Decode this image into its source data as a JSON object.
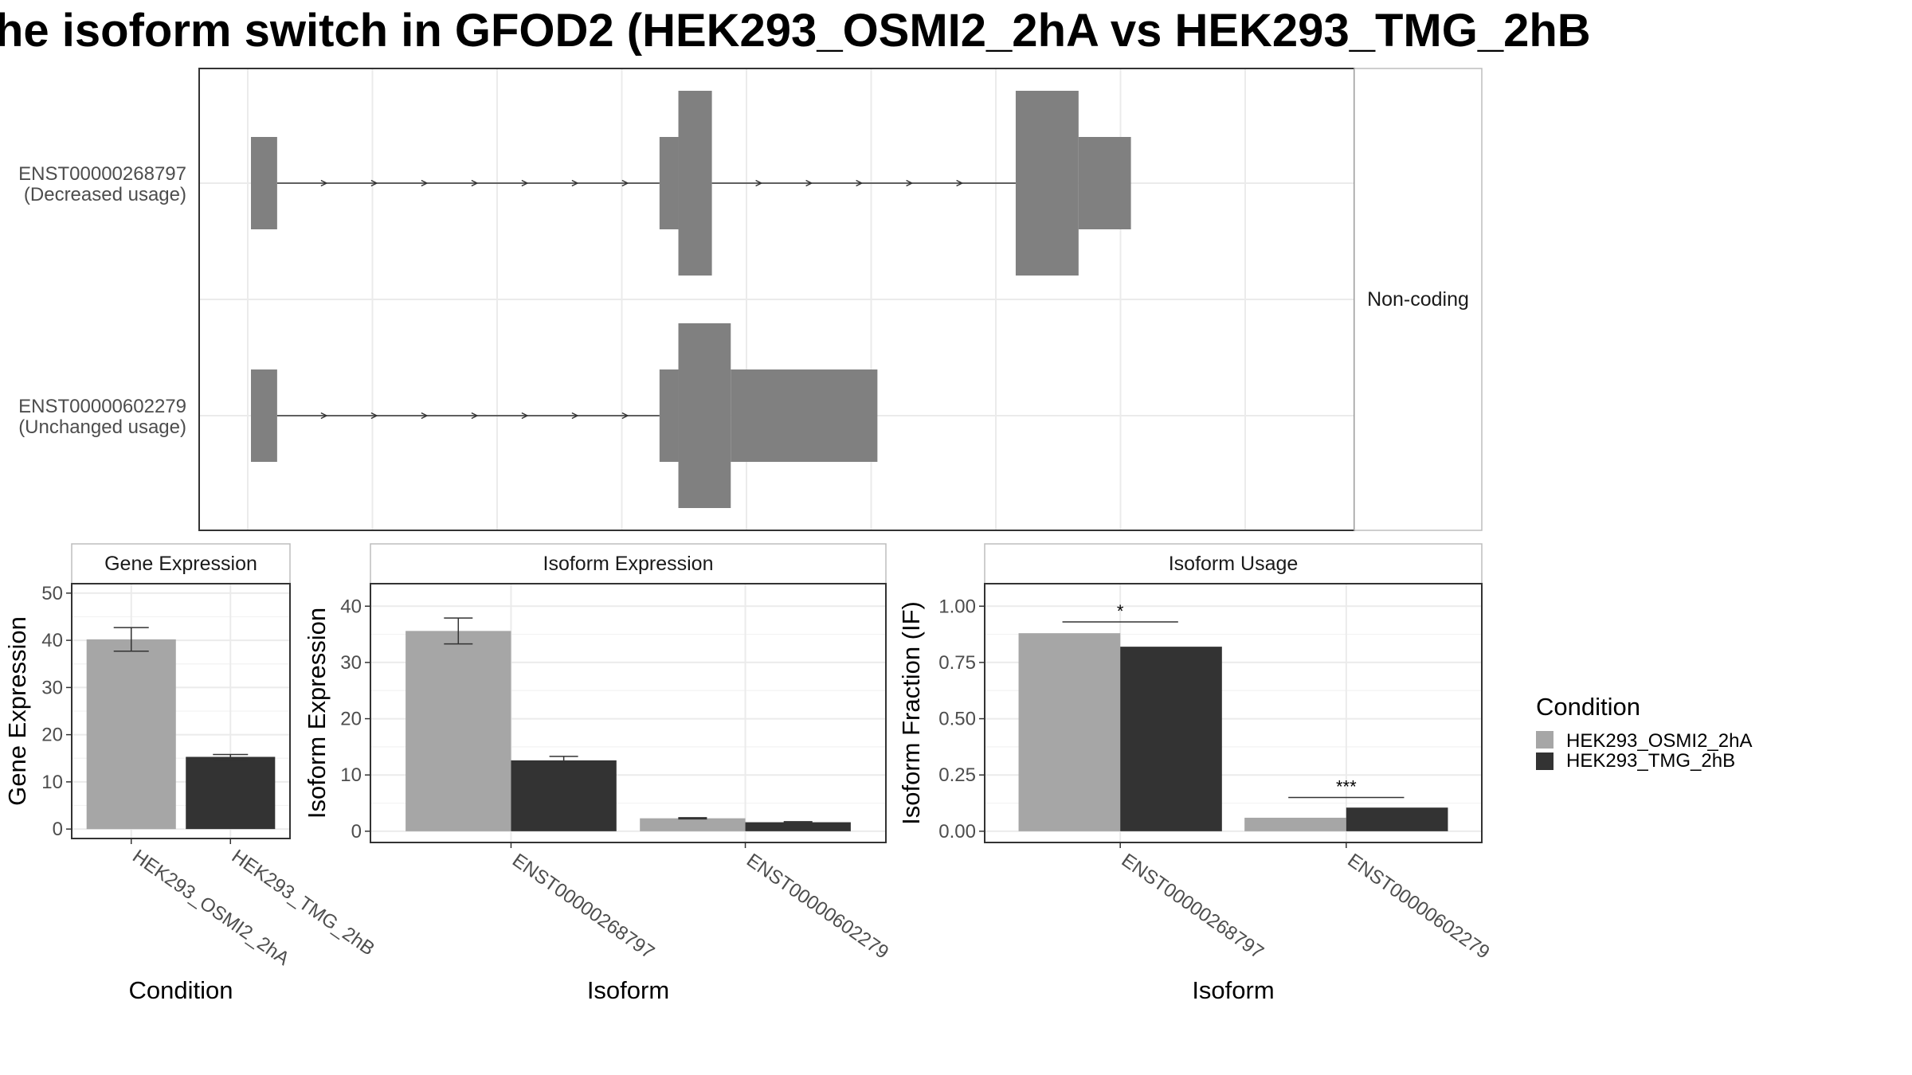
{
  "title": "he isoform switch in GFOD2 (HEK293_OSMI2_2hA vs HEK293_TMG_2hB",
  "colors": {
    "cond_a": "#a6a6a6",
    "cond_b": "#333333",
    "exon": "#808080",
    "grid": "#ebebeb"
  },
  "legend": {
    "title": "Condition",
    "entries": [
      {
        "label": "HEK293_OSMI2_2hA",
        "color": "#a6a6a6"
      },
      {
        "label": "HEK293_TMG_2hB",
        "color": "#333333"
      }
    ],
    "placement": "right"
  },
  "chart_data": [
    {
      "type": "gene-structure",
      "strip_label": "Non-coding",
      "transcripts": [
        {
          "id": "ENST00000268797",
          "usage": "(Decreased usage)",
          "strand": "+",
          "exons": [
            {
              "start": 0.0,
              "end": 0.025,
              "size": "medium"
            },
            {
              "start": 0.39,
              "end": 0.408,
              "size": "medium"
            },
            {
              "start": 0.408,
              "end": 0.44,
              "size": "large"
            },
            {
              "start": 0.73,
              "end": 0.79,
              "size": "large"
            },
            {
              "start": 0.79,
              "end": 0.84,
              "size": "medium"
            }
          ]
        },
        {
          "id": "ENST00000602279",
          "usage": "(Unchanged usage)",
          "strand": "+",
          "exons": [
            {
              "start": 0.0,
              "end": 0.025,
              "size": "medium"
            },
            {
              "start": 0.39,
              "end": 0.408,
              "size": "medium"
            },
            {
              "start": 0.408,
              "end": 0.458,
              "size": "large"
            },
            {
              "start": 0.458,
              "end": 0.598,
              "size": "medium"
            }
          ]
        }
      ]
    },
    {
      "type": "bar",
      "strip_label": "Gene Expression",
      "xlabel": "Condition",
      "ylabel": "Gene Expression",
      "ylim": [
        -2,
        52
      ],
      "yticks": [
        0,
        10,
        20,
        30,
        40,
        50
      ],
      "categories": [
        "HEK293_OSMI2_2hA",
        "HEK293_TMG_2hB"
      ],
      "values": [
        40.2,
        15.3
      ],
      "errors": [
        2.5,
        0.5
      ],
      "grid": true
    },
    {
      "type": "bar",
      "strip_label": "Isoform Expression",
      "xlabel": "Isoform",
      "ylabel": "Isoform Expression",
      "ylim": [
        -2,
        44
      ],
      "yticks": [
        0,
        10,
        20,
        30,
        40
      ],
      "categories": [
        "ENST00000268797",
        "ENST00000602279"
      ],
      "series": [
        {
          "name": "HEK293_OSMI2_2hA",
          "values": [
            35.6,
            2.3
          ],
          "errors": [
            2.3,
            0.1
          ]
        },
        {
          "name": "HEK293_TMG_2hB",
          "values": [
            12.6,
            1.6
          ],
          "errors": [
            0.7,
            0.1
          ]
        }
      ],
      "grid": true
    },
    {
      "type": "bar",
      "strip_label": "Isoform Usage",
      "xlabel": "Isoform",
      "ylabel": "Isoform Fraction (IF)",
      "ylim": [
        -0.05,
        1.1
      ],
      "yticks": [
        "0.00",
        "0.25",
        "0.50",
        "0.75",
        "1.00"
      ],
      "categories": [
        "ENST00000268797",
        "ENST00000602279"
      ],
      "series": [
        {
          "name": "HEK293_OSMI2_2hA",
          "values": [
            0.88,
            0.06
          ]
        },
        {
          "name": "HEK293_TMG_2hB",
          "values": [
            0.82,
            0.105
          ]
        }
      ],
      "significance": [
        {
          "category": "ENST00000268797",
          "label": "*",
          "y": 0.93
        },
        {
          "category": "ENST00000602279",
          "label": "***",
          "y": 0.15
        }
      ],
      "grid": true
    }
  ]
}
